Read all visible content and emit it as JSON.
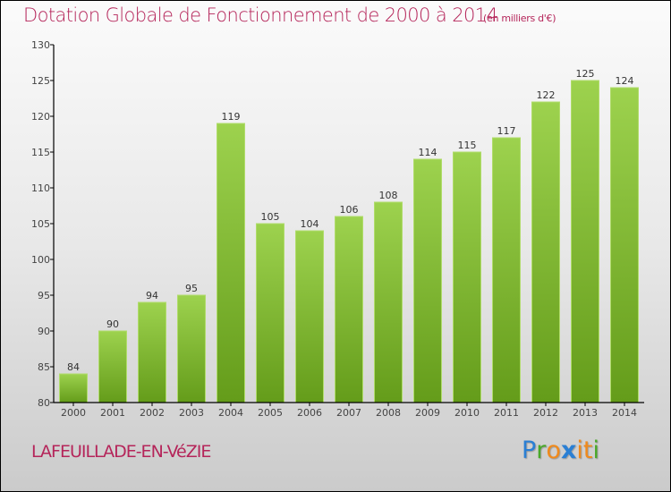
{
  "header": {
    "title": "Dotation Globale de Fonctionnement de 2000 à 2014",
    "subtitle": "(en milliers d'€)"
  },
  "footer": {
    "commune": "LAFEUILLADE-EN-VéZIE",
    "logo": {
      "letters": [
        {
          "char": "P",
          "color": "#2a7fd4"
        },
        {
          "char": "r",
          "color": "#4aa82a"
        },
        {
          "char": "o",
          "color": "#f08a1c"
        },
        {
          "char": "x",
          "color": "#2a7fd4"
        },
        {
          "char": "i",
          "color": "#f08a1c"
        },
        {
          "char": "t",
          "color": "#f08a1c"
        },
        {
          "char": "i",
          "color": "#4aa82a"
        }
      ]
    }
  },
  "colors": {
    "title": "#b5255a",
    "bar_top": "#9dd24e",
    "bar_bottom": "#649c1a",
    "bar_edge": "#b0dc6a",
    "axis": "#000000"
  },
  "chart_data": {
    "type": "bar",
    "title": "Dotation Globale de Fonctionnement de 2000 à 2014",
    "subtitle": "(en milliers d'€)",
    "xlabel": "",
    "ylabel": "",
    "categories": [
      "2000",
      "2001",
      "2002",
      "2003",
      "2004",
      "2005",
      "2006",
      "2007",
      "2008",
      "2009",
      "2010",
      "2011",
      "2012",
      "2013",
      "2014"
    ],
    "values": [
      84,
      90,
      94,
      95,
      119,
      105,
      104,
      106,
      108,
      114,
      115,
      117,
      122,
      125,
      124
    ],
    "data_labels": [
      "84",
      "90",
      "94",
      "95",
      "119",
      "105",
      "104",
      "106",
      "108",
      "114",
      "115",
      "117",
      "122",
      "125",
      "124"
    ],
    "ylim": [
      80,
      130
    ],
    "yticks": [
      80,
      85,
      90,
      95,
      100,
      105,
      110,
      115,
      120,
      125,
      130
    ],
    "grid": false,
    "legend": "none"
  }
}
